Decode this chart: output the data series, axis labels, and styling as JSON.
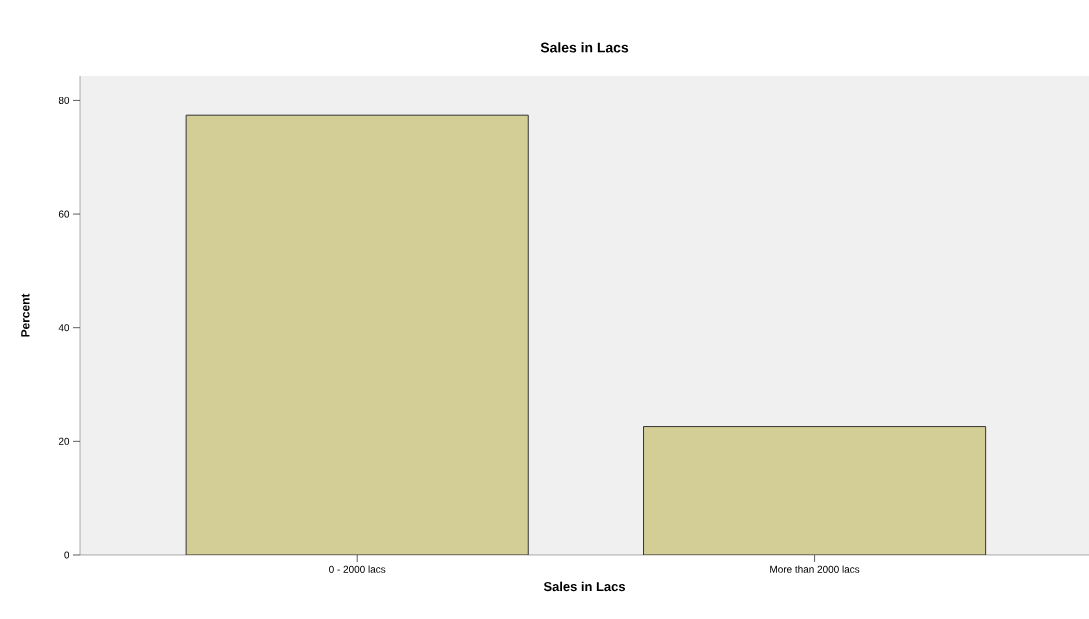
{
  "chart_data": {
    "type": "bar",
    "title": "Sales in Lacs",
    "xlabel": "Sales in Lacs",
    "ylabel": "Percent",
    "categories": [
      "0 - 2000 lacs",
      "More than 2000 lacs"
    ],
    "values": [
      77.4,
      22.6
    ],
    "color": "#d3cd96",
    "ylim": [
      0,
      84.3
    ],
    "yticks": [
      0,
      20,
      40,
      60,
      80
    ],
    "grid": false
  }
}
